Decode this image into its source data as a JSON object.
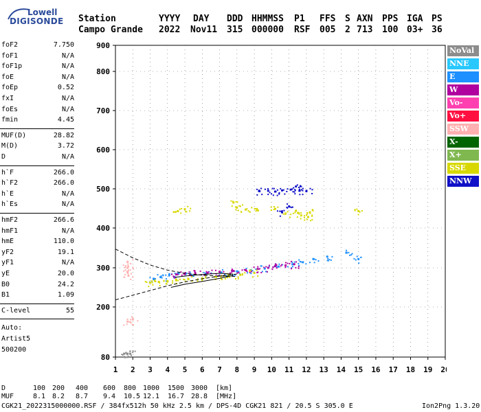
{
  "logo": {
    "brand_top": "Lowell",
    "brand_bottom": "DIGISONDE"
  },
  "header": {
    "labels": [
      "Station",
      "YYYY",
      "DAY",
      "DDD",
      "HHMMSS",
      "P1",
      "FFS",
      "S",
      "AXN",
      "PPS",
      "IGA",
      "PS"
    ],
    "values": [
      "Campo Grande",
      "2022",
      "Nov11",
      "315",
      "000000",
      "RSF",
      "005",
      "2",
      "713",
      "100",
      "03+",
      "36"
    ]
  },
  "params": {
    "group1": [
      {
        "name": "foF2",
        "value": "7.750"
      },
      {
        "name": "foF1",
        "value": "N/A"
      },
      {
        "name": "foF1p",
        "value": "N/A"
      },
      {
        "name": "foE",
        "value": "N/A"
      },
      {
        "name": "foEp",
        "value": "0.52"
      },
      {
        "name": "fxI",
        "value": "N/A"
      },
      {
        "name": "foEs",
        "value": "N/A"
      },
      {
        "name": "fmin",
        "value": "4.45"
      }
    ],
    "group2": [
      {
        "name": "MUF(D)",
        "value": "28.82"
      },
      {
        "name": "M(D)",
        "value": "3.72"
      },
      {
        "name": "D",
        "value": "N/A"
      }
    ],
    "group3": [
      {
        "name": "h`F",
        "value": "266.0"
      },
      {
        "name": "h`F2",
        "value": "266.0"
      },
      {
        "name": "h`E",
        "value": "N/A"
      },
      {
        "name": "h`Es",
        "value": "N/A"
      }
    ],
    "group4": [
      {
        "name": "hmF2",
        "value": "266.6"
      },
      {
        "name": "hmF1",
        "value": "N/A"
      },
      {
        "name": "hmE",
        "value": "110.0"
      },
      {
        "name": "yF2",
        "value": "19.1"
      },
      {
        "name": "yF1",
        "value": "N/A"
      },
      {
        "name": "yE",
        "value": "20.0"
      },
      {
        "name": "B0",
        "value": "24.2"
      },
      {
        "name": "B1",
        "value": "1.09"
      }
    ],
    "group5": [
      {
        "name": "C-level",
        "value": "55"
      }
    ],
    "auto": [
      "Auto:",
      "Artist5",
      "500200"
    ]
  },
  "legend": [
    {
      "label": "NoVal",
      "color": "#8c8c8c"
    },
    {
      "label": "NNE",
      "color": "#28c8ff"
    },
    {
      "label": "E",
      "color": "#1e90ff"
    },
    {
      "label": "W",
      "color": "#b000a0"
    },
    {
      "label": "Vo-",
      "color": "#ff40b0"
    },
    {
      "label": "Vo+",
      "color": "#ff1040"
    },
    {
      "label": "SSW",
      "color": "#ffb0b0"
    },
    {
      "label": "X-",
      "color": "#006400"
    },
    {
      "label": "X+",
      "color": "#80b850"
    },
    {
      "label": "SSE",
      "color": "#d8d800"
    },
    {
      "label": "NNW",
      "color": "#1010c8"
    }
  ],
  "chart_data": {
    "type": "scatter",
    "xlim": [
      1,
      20
    ],
    "ylim": [
      80,
      900
    ],
    "x_ticks": [
      "1",
      "2",
      "3",
      "4",
      "5",
      "6",
      "7",
      "8",
      "9",
      "10",
      "11",
      "12",
      "13",
      "14",
      "15",
      "16",
      "17",
      "18",
      "19",
      "20"
    ],
    "y_ticks": [
      "80",
      "200",
      "300",
      "400",
      "500",
      "600",
      "700",
      "800",
      "900"
    ],
    "grid": true,
    "series": [
      {
        "name": "F-layer trace (NNE/E)",
        "color": "#1e90ff",
        "points": [
          [
            3.2,
            272
          ],
          [
            3.6,
            276
          ],
          [
            4.1,
            282
          ],
          [
            4.6,
            284
          ],
          [
            5.3,
            283
          ],
          [
            6.2,
            285
          ],
          [
            7.1,
            288
          ],
          [
            8.0,
            291
          ],
          [
            8.8,
            294
          ],
          [
            9.6,
            298
          ],
          [
            10.4,
            303
          ],
          [
            11.2,
            309
          ],
          [
            11.8,
            314
          ],
          [
            12.4,
            322
          ],
          [
            13.2,
            328
          ],
          [
            14.3,
            338
          ],
          [
            15.0,
            322
          ]
        ]
      },
      {
        "name": "F-layer trace (W/Vo-)",
        "color": "#b000a0",
        "points": [
          [
            4.5,
            283
          ],
          [
            5.0,
            285
          ],
          [
            5.6,
            286
          ],
          [
            6.3,
            287
          ],
          [
            7.0,
            290
          ],
          [
            7.8,
            292
          ],
          [
            8.5,
            294
          ],
          [
            9.2,
            297
          ],
          [
            9.8,
            300
          ],
          [
            10.2,
            304
          ],
          [
            10.8,
            306
          ],
          [
            11.3,
            309
          ]
        ]
      },
      {
        "name": "F-layer trace (SSE)",
        "color": "#d8d800",
        "points": [
          [
            3.0,
            262
          ],
          [
            3.5,
            264
          ],
          [
            4.0,
            266
          ],
          [
            4.5,
            268
          ],
          [
            5.2,
            271
          ],
          [
            6.0,
            273
          ],
          [
            6.8,
            277
          ],
          [
            7.5,
            279
          ],
          [
            8.2,
            282
          ],
          [
            9.0,
            287
          ]
        ]
      },
      {
        "name": "Multi-hop SSE",
        "color": "#d8d800",
        "points": [
          [
            4.6,
            443
          ],
          [
            5.0,
            448
          ],
          [
            7.8,
            465
          ],
          [
            8.0,
            452
          ],
          [
            8.5,
            447
          ],
          [
            9.2,
            445
          ],
          [
            10.2,
            449
          ],
          [
            10.8,
            437
          ],
          [
            11.4,
            444
          ],
          [
            11.7,
            432
          ],
          [
            12.1,
            428
          ],
          [
            12.2,
            440
          ],
          [
            15.0,
            443
          ]
        ]
      },
      {
        "name": "Multi-hop NNW",
        "color": "#1010c8",
        "points": [
          [
            9.3,
            494
          ],
          [
            9.8,
            495
          ],
          [
            10.2,
            493
          ],
          [
            10.6,
            496
          ],
          [
            11.1,
            498
          ],
          [
            11.4,
            506
          ],
          [
            11.6,
            495
          ],
          [
            12.0,
            494
          ],
          [
            11.0,
            455
          ],
          [
            10.6,
            440
          ]
        ]
      },
      {
        "name": "Low-frequency SSW",
        "color": "#ffb0b0",
        "points": [
          [
            1.7,
            315
          ],
          [
            1.7,
            300
          ],
          [
            1.7,
            290
          ],
          [
            1.75,
            280
          ],
          [
            1.7,
            165
          ],
          [
            2.0,
            170
          ]
        ]
      },
      {
        "name": "Ground NoVal",
        "color": "#8c8c8c",
        "points": [
          [
            1.5,
            88
          ],
          [
            1.7,
            88
          ],
          [
            1.85,
            88
          ]
        ]
      }
    ],
    "fit_upper": [
      [
        1,
        347
      ],
      [
        2,
        325
      ],
      [
        3,
        307
      ],
      [
        4,
        294
      ],
      [
        5,
        286
      ],
      [
        6,
        281
      ],
      [
        7,
        279
      ],
      [
        8,
        278
      ]
    ],
    "fit_lower": [
      [
        1,
        218
      ],
      [
        2,
        230
      ],
      [
        3,
        242
      ],
      [
        4,
        254
      ],
      [
        5,
        264
      ],
      [
        6,
        272
      ],
      [
        7,
        279
      ],
      [
        8,
        284
      ]
    ],
    "profile": [
      [
        4.2,
        250
      ],
      [
        5,
        258
      ],
      [
        6,
        265
      ],
      [
        7,
        273
      ],
      [
        7.75,
        280
      ],
      [
        7.75,
        284
      ],
      [
        7,
        286
      ],
      [
        6,
        283
      ],
      [
        5,
        279
      ],
      [
        4.45,
        276
      ]
    ]
  },
  "footer": {
    "d_label": "D",
    "d_values": [
      "100",
      "200",
      "400",
      "600",
      "800",
      "1000",
      "1500",
      "3000",
      "[km]"
    ],
    "muf_label": "MUF",
    "muf_values": [
      "8.1",
      "8.2",
      "8.7",
      "9.4",
      "10.5",
      "12.1",
      "16.7",
      "28.8",
      "[MHz]"
    ],
    "file_line": "CGK21_2022315000000.RSF / 384fx512h 50 kHz 2.5 km / DPS-4D CGK21 821 / 20.5 S 305.0 E",
    "program": "Ion2Png 1.3.20"
  }
}
